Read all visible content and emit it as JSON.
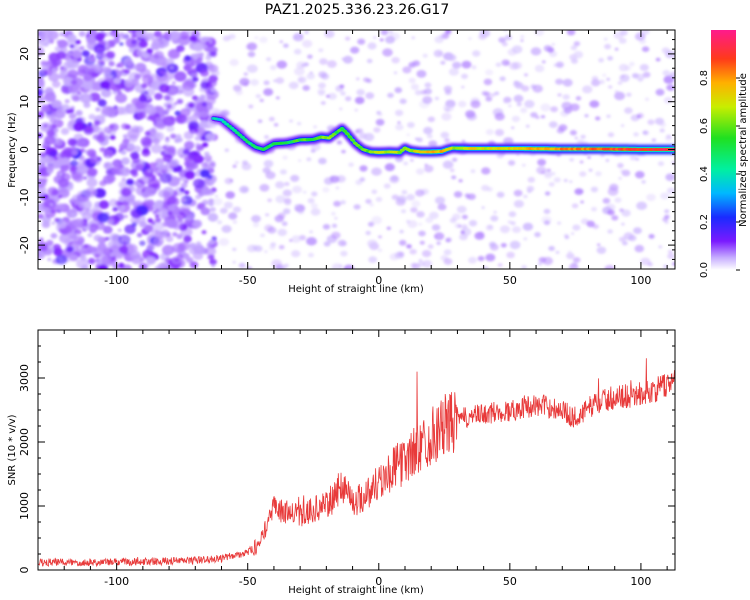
{
  "title": "PAZ1.2025.336.23.26.G17",
  "colors": {
    "signal_line": "#e83a3a",
    "spectrogram_noise": "#7a1aff"
  },
  "chart_data": [
    {
      "type": "heatmap",
      "title": "PAZ1.2025.336.23.26.G17",
      "xlabel": "Height of straight line (km)",
      "ylabel": "Frequency (Hz)",
      "xlim": [
        -130,
        113
      ],
      "ylim": [
        -25,
        25
      ],
      "xticks": [
        -100,
        -50,
        0,
        50,
        100
      ],
      "yticks": [
        -20,
        -10,
        0,
        10,
        20
      ],
      "colorbar": {
        "label": "Normalized spectral amplitude",
        "range": [
          0,
          1
        ],
        "ticks": [
          0.0,
          0.2,
          0.4,
          0.6,
          0.8
        ],
        "tick_labels": [
          "0.0",
          "0.2",
          "0.4",
          "0.6",
          "0.8"
        ]
      },
      "ridge": {
        "x": [
          -63,
          -60,
          -55,
          -50,
          -47,
          -44,
          -40,
          -35,
          -30,
          -25,
          -22,
          -19,
          -16,
          -14,
          -12,
          -9,
          -6,
          -3,
          0,
          4,
          8,
          10,
          12,
          16,
          20,
          24,
          26,
          28,
          35,
          45,
          55,
          70,
          85,
          100,
          113
        ],
        "freq": [
          6.5,
          6.2,
          4.0,
          1.6,
          0.5,
          0.0,
          1.2,
          1.4,
          2.0,
          2.1,
          2.6,
          2.4,
          3.6,
          4.4,
          3.3,
          1.3,
          0.0,
          -0.5,
          -0.6,
          -0.5,
          -0.6,
          0.3,
          -0.2,
          -0.5,
          -0.5,
          -0.4,
          0.0,
          0.3,
          0.2,
          0.2,
          0.2,
          0.1,
          0.1,
          0.0,
          0.0
        ],
        "amplitude": [
          0.3,
          0.35,
          0.4,
          0.4,
          0.45,
          0.45,
          0.45,
          0.45,
          0.5,
          0.5,
          0.55,
          0.55,
          0.5,
          0.5,
          0.55,
          0.5,
          0.5,
          0.55,
          0.6,
          0.6,
          0.6,
          0.55,
          0.6,
          0.65,
          0.7,
          0.7,
          0.65,
          0.6,
          0.65,
          0.65,
          0.7,
          0.75,
          0.8,
          0.85,
          0.88
        ]
      },
      "noise_region": {
        "dense_until_km": -65
      }
    },
    {
      "type": "line",
      "xlabel": "Height of straight line (km)",
      "ylabel": "SNR (10 * v/v)",
      "xlim": [
        -130,
        113
      ],
      "ylim": [
        0,
        3750
      ],
      "xticks": [
        -100,
        -50,
        0,
        50,
        100
      ],
      "yticks": [
        0,
        1000,
        2000,
        3000
      ],
      "series": [
        {
          "name": "SNR",
          "x": [
            -130,
            -110,
            -90,
            -70,
            -60,
            -55,
            -50,
            -46,
            -44,
            -42,
            -40,
            -35,
            -30,
            -25,
            -20,
            -16,
            -14,
            -12,
            -10,
            -6,
            -2,
            2,
            6,
            10,
            15,
            20,
            25,
            30,
            35,
            40,
            45,
            50,
            55,
            60,
            65,
            70,
            74,
            78,
            82,
            86,
            90,
            95,
            100,
            105,
            110,
            113
          ],
          "y": [
            120,
            120,
            130,
            150,
            180,
            230,
            280,
            380,
            550,
            800,
            950,
            900,
            850,
            950,
            1000,
            1200,
            1350,
            1250,
            1050,
            1150,
            1300,
            1450,
            1600,
            1700,
            1900,
            2100,
            2250,
            2350,
            2400,
            2430,
            2470,
            2480,
            2550,
            2570,
            2550,
            2500,
            2380,
            2450,
            2600,
            2650,
            2700,
            2720,
            2750,
            2800,
            2900,
            2980
          ]
        }
      ]
    }
  ]
}
